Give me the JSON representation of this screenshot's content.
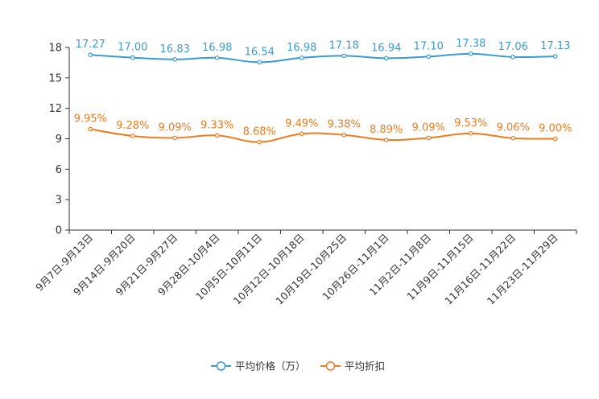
{
  "chart_data": {
    "type": "line",
    "title": "",
    "xlabel": "",
    "ylabel": "",
    "ylim": [
      0,
      18
    ],
    "yticks": [
      0,
      3,
      6,
      9,
      12,
      15,
      18
    ],
    "grid": false,
    "legend_position": "bottom-center",
    "categories": [
      "9月7日-9月13日",
      "9月14日-9月20日",
      "9月21日-9月27日",
      "9月28日-10月4日",
      "10月5日-10月11日",
      "10月12日-10月18日",
      "10月19日-10月25日",
      "10月26日-11月1日",
      "11月2日-11月8日",
      "11月9日-11月15日",
      "11月16日-11月22日",
      "11月23日-11月29日"
    ],
    "series": [
      {
        "name": "平均价格（万）",
        "color": "#3a9bd0",
        "values": [
          17.27,
          17.0,
          16.83,
          16.98,
          16.54,
          16.98,
          17.18,
          16.94,
          17.1,
          17.38,
          17.06,
          17.13
        ],
        "labels": [
          "17.27",
          "17.00",
          "16.83",
          "16.98",
          "16.54",
          "16.98",
          "17.18",
          "16.94",
          "17.10",
          "17.38",
          "17.06",
          "17.13"
        ]
      },
      {
        "name": "平均折扣",
        "color": "#f07b1e",
        "values": [
          9.95,
          9.28,
          9.09,
          9.33,
          8.68,
          9.49,
          9.38,
          8.89,
          9.09,
          9.53,
          9.06,
          9.0
        ],
        "labels": [
          "9.95%",
          "9.28%",
          "9.09%",
          "9.33%",
          "8.68%",
          "9.49%",
          "9.38%",
          "8.89%",
          "9.09%",
          "9.53%",
          "9.06%",
          "9.00%"
        ]
      }
    ]
  }
}
